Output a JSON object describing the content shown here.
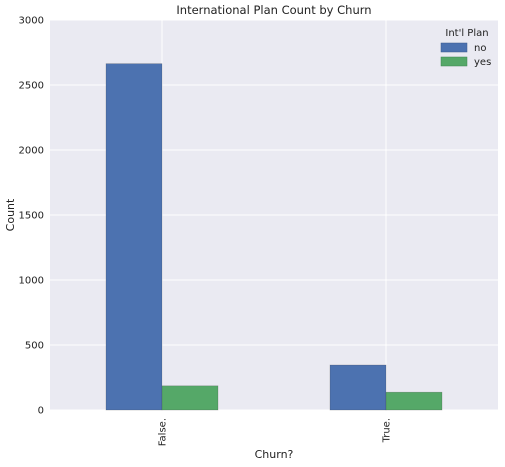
{
  "chart_data": {
    "type": "bar",
    "title": "International Plan Count by Churn",
    "xlabel": "Churn?",
    "ylabel": "Count",
    "categories": [
      "False.",
      "True."
    ],
    "ylim": [
      0,
      3000
    ],
    "yticks": [
      0,
      500,
      1000,
      1500,
      2000,
      2500,
      3000
    ],
    "grid": true,
    "legend": {
      "title": "Int'l Plan",
      "placement": "top-right"
    },
    "series": [
      {
        "name": "no",
        "values": [
          2664,
          346
        ],
        "color": "#4c72b0"
      },
      {
        "name": "yes",
        "values": [
          186,
          137
        ],
        "color": "#55a868"
      }
    ]
  }
}
